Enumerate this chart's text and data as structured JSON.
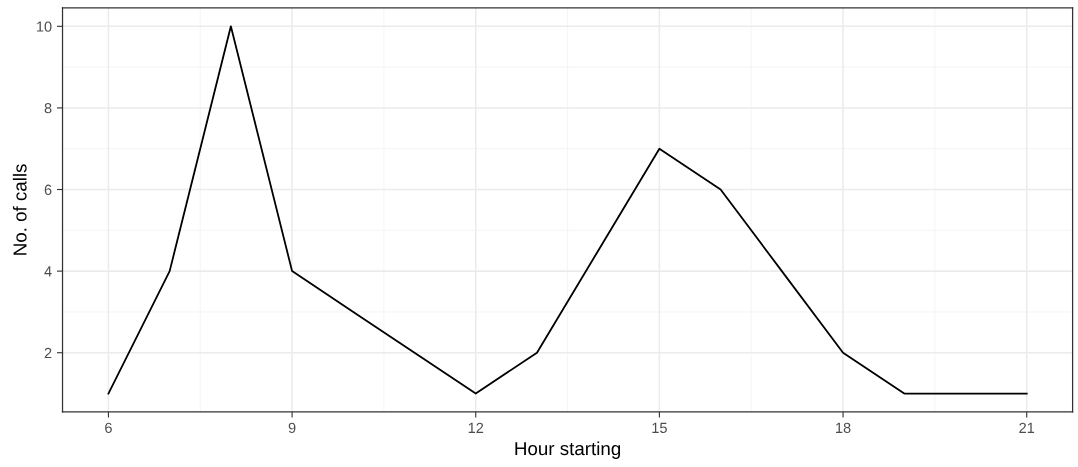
{
  "chart_data": {
    "type": "line",
    "xlabel": "Hour starting",
    "ylabel": "No. of calls",
    "x": [
      6,
      7,
      8,
      9,
      10,
      11,
      12,
      13,
      14,
      15,
      16,
      17,
      18,
      19,
      20,
      21
    ],
    "series": [
      {
        "color": "#000000",
        "values": [
          1,
          4,
          10,
          4,
          3,
          2,
          1,
          2,
          4.5,
          7,
          6,
          4,
          2,
          1,
          1,
          1
        ]
      }
    ],
    "xlim": [
      5.25,
      21.75
    ],
    "ylim": [
      0.55,
      10.45
    ],
    "xticks": [
      6,
      9,
      12,
      15,
      18,
      21
    ],
    "yticks": [
      2,
      4,
      6,
      8,
      10
    ],
    "grid": true,
    "marker": "none",
    "line_style": "solid",
    "legend": false
  }
}
